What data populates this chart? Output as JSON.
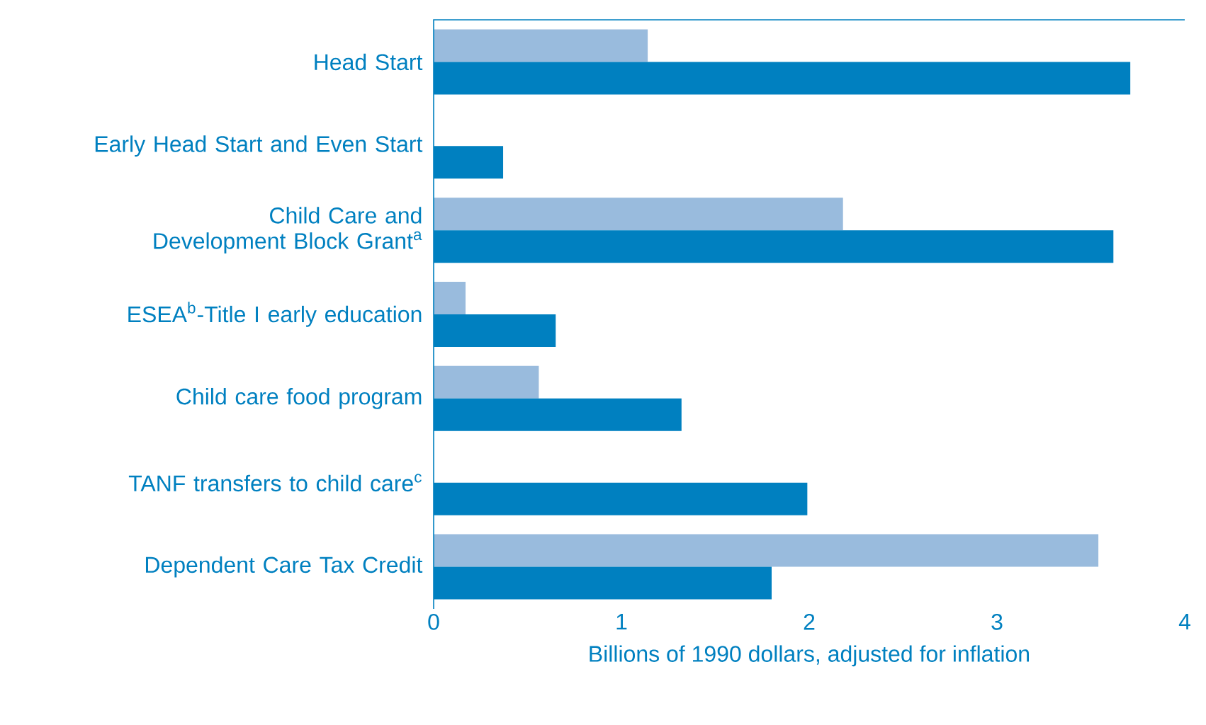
{
  "chart_data": {
    "type": "bar",
    "orientation": "horizontal",
    "xlabel": "Billions of 1990 dollars, adjusted for inflation",
    "categories": [
      "Head Start",
      "Early Head Start and Even Start",
      "Child Care and Development Block Grant$^{a}$",
      "ESEA$^{b}$-Title I early education",
      "Child care food program",
      "TANF transfers to child care$^{c}$",
      "Dependent Care Tax Credit"
    ],
    "series": [
      {
        "color": "#99bbdd",
        "values": [
          1.14,
          null,
          2.18,
          0.17,
          0.56,
          null,
          3.54
        ]
      },
      {
        "color": "#0080c0",
        "values": [
          3.71,
          0.37,
          3.62,
          0.65,
          1.32,
          1.99,
          1.8
        ]
      }
    ],
    "xlim": [
      0,
      4
    ],
    "xticks": [
      0,
      1,
      2,
      3,
      4
    ],
    "grid": false
  }
}
